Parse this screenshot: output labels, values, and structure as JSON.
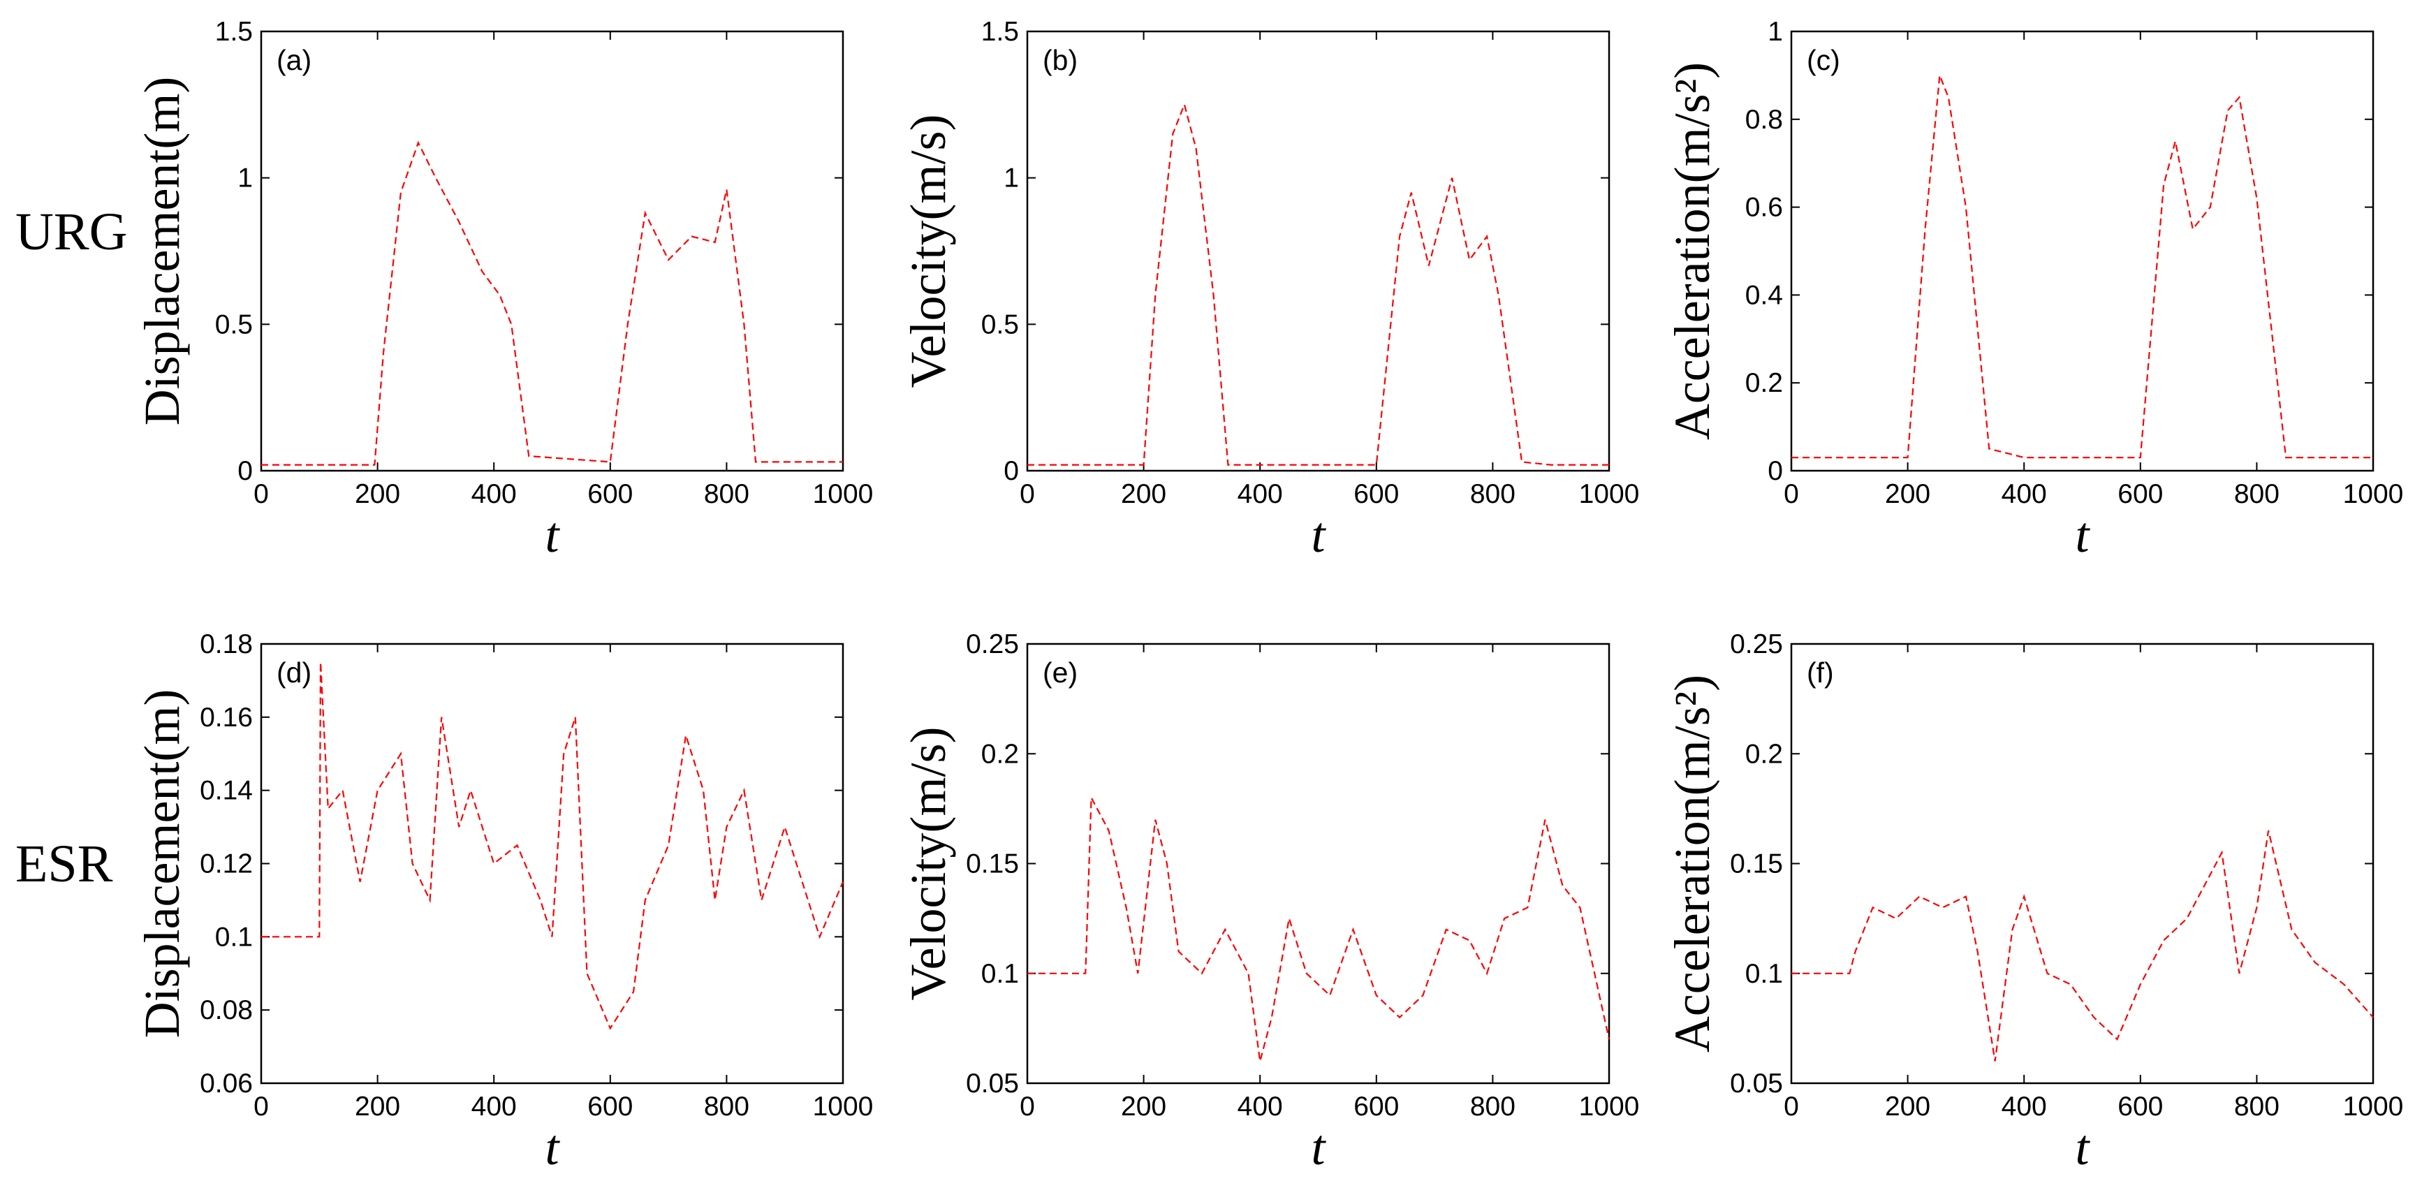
{
  "figure": {
    "row_labels": [
      "URG",
      "ESR"
    ]
  },
  "chart_data": [
    {
      "type": "line",
      "panel": "(a)",
      "row": "URG",
      "ylabel": "Displacement(m)",
      "xlabel": "t",
      "xlim": [
        0,
        1000
      ],
      "ylim": [
        0,
        1.5
      ],
      "xticks": [
        "0",
        "200",
        "400",
        "600",
        "800",
        "1000"
      ],
      "yticks": [
        "0",
        "0.5",
        "1",
        "1.5"
      ],
      "x": [
        0,
        50,
        100,
        150,
        195,
        210,
        240,
        270,
        300,
        340,
        380,
        410,
        430,
        460,
        600,
        630,
        660,
        700,
        740,
        780,
        800,
        830,
        850,
        1000
      ],
      "series": [
        {
          "name": "Displacement",
          "color": "#ff0000",
          "values": [
            0.02,
            0.02,
            0.02,
            0.02,
            0.02,
            0.4,
            0.95,
            1.12,
            1.0,
            0.85,
            0.68,
            0.6,
            0.5,
            0.05,
            0.03,
            0.5,
            0.88,
            0.72,
            0.8,
            0.78,
            0.96,
            0.5,
            0.03,
            0.03
          ]
        }
      ]
    },
    {
      "type": "line",
      "panel": "(b)",
      "row": "URG",
      "ylabel": "Velocity(m/s)",
      "xlabel": "t",
      "xlim": [
        0,
        1000
      ],
      "ylim": [
        0,
        1.5
      ],
      "xticks": [
        "0",
        "200",
        "400",
        "600",
        "800",
        "1000"
      ],
      "yticks": [
        "0",
        "0.5",
        "1",
        "1.5"
      ],
      "x": [
        0,
        100,
        200,
        220,
        250,
        270,
        290,
        320,
        345,
        400,
        500,
        600,
        640,
        660,
        690,
        730,
        760,
        790,
        810,
        850,
        900,
        1000
      ],
      "series": [
        {
          "name": "Velocity",
          "color": "#ff0000",
          "values": [
            0.02,
            0.02,
            0.02,
            0.6,
            1.15,
            1.25,
            1.1,
            0.6,
            0.02,
            0.02,
            0.02,
            0.02,
            0.8,
            0.95,
            0.7,
            1.0,
            0.72,
            0.8,
            0.6,
            0.03,
            0.02,
            0.02
          ]
        }
      ]
    },
    {
      "type": "line",
      "panel": "(c)",
      "row": "URG",
      "ylabel": "Acceleration(m/s²)",
      "xlabel": "t",
      "xlim": [
        0,
        1000
      ],
      "ylim": [
        0,
        1
      ],
      "xticks": [
        "0",
        "200",
        "400",
        "600",
        "800",
        "1000"
      ],
      "yticks": [
        "0",
        "0.2",
        "0.4",
        "0.6",
        "0.8",
        "1"
      ],
      "x": [
        0,
        100,
        200,
        230,
        255,
        270,
        300,
        340,
        400,
        500,
        600,
        640,
        660,
        690,
        720,
        750,
        770,
        800,
        850,
        1000
      ],
      "series": [
        {
          "name": "Acceleration",
          "color": "#ff0000",
          "values": [
            0.03,
            0.03,
            0.03,
            0.55,
            0.9,
            0.85,
            0.6,
            0.05,
            0.03,
            0.03,
            0.03,
            0.65,
            0.75,
            0.55,
            0.6,
            0.82,
            0.85,
            0.62,
            0.03,
            0.03
          ]
        }
      ]
    },
    {
      "type": "line",
      "panel": "(d)",
      "row": "ESR",
      "ylabel": "Displacement(m)",
      "xlabel": "t",
      "xlim": [
        0,
        1000
      ],
      "ylim": [
        0.06,
        0.18
      ],
      "xticks": [
        "0",
        "200",
        "400",
        "600",
        "800",
        "1000"
      ],
      "yticks": [
        "0.06",
        "0.08",
        "0.1",
        "0.12",
        "0.14",
        "0.16",
        "0.18"
      ],
      "x": [
        0,
        100,
        102,
        115,
        140,
        170,
        200,
        240,
        260,
        290,
        310,
        340,
        360,
        400,
        440,
        480,
        500,
        520,
        540,
        560,
        600,
        640,
        660,
        700,
        730,
        760,
        780,
        800,
        830,
        860,
        900,
        940,
        960,
        1000
      ],
      "series": [
        {
          "name": "Displacement",
          "color": "#ff0000",
          "values": [
            0.1,
            0.1,
            0.175,
            0.135,
            0.14,
            0.115,
            0.14,
            0.15,
            0.12,
            0.11,
            0.16,
            0.13,
            0.14,
            0.12,
            0.125,
            0.11,
            0.1,
            0.15,
            0.16,
            0.09,
            0.075,
            0.085,
            0.11,
            0.125,
            0.155,
            0.14,
            0.11,
            0.13,
            0.14,
            0.11,
            0.13,
            0.11,
            0.1,
            0.115
          ]
        }
      ]
    },
    {
      "type": "line",
      "panel": "(e)",
      "row": "ESR",
      "ylabel": "Velocity(m/s)",
      "xlabel": "t",
      "xlim": [
        0,
        1000
      ],
      "ylim": [
        0.05,
        0.25
      ],
      "xticks": [
        "0",
        "200",
        "400",
        "600",
        "800",
        "1000"
      ],
      "yticks": [
        "0.05",
        "0.1",
        "0.15",
        "0.2",
        "0.25"
      ],
      "x": [
        0,
        95,
        100,
        110,
        140,
        170,
        190,
        220,
        240,
        260,
        300,
        340,
        380,
        400,
        420,
        450,
        480,
        520,
        560,
        600,
        640,
        680,
        720,
        760,
        790,
        820,
        860,
        890,
        920,
        950,
        975,
        1000
      ],
      "series": [
        {
          "name": "Velocity",
          "color": "#ff0000",
          "values": [
            0.1,
            0.1,
            0.1,
            0.18,
            0.165,
            0.13,
            0.1,
            0.17,
            0.15,
            0.11,
            0.1,
            0.12,
            0.1,
            0.06,
            0.08,
            0.125,
            0.1,
            0.09,
            0.12,
            0.09,
            0.08,
            0.09,
            0.12,
            0.115,
            0.1,
            0.125,
            0.13,
            0.17,
            0.14,
            0.13,
            0.1,
            0.07
          ]
        }
      ]
    },
    {
      "type": "line",
      "panel": "(f)",
      "row": "ESR",
      "ylabel": "Acceleration(m/s²)",
      "xlabel": "t",
      "xlim": [
        0,
        1000
      ],
      "ylim": [
        0.05,
        0.25
      ],
      "xticks": [
        "0",
        "200",
        "400",
        "600",
        "800",
        "1000"
      ],
      "yticks": [
        "0.05",
        "0.1",
        "0.15",
        "0.2",
        "0.25"
      ],
      "x": [
        0,
        100,
        110,
        140,
        180,
        220,
        260,
        300,
        320,
        350,
        380,
        400,
        440,
        480,
        520,
        560,
        600,
        640,
        680,
        720,
        740,
        770,
        800,
        820,
        860,
        900,
        950,
        1000
      ],
      "series": [
        {
          "name": "Acceleration",
          "color": "#ff0000",
          "values": [
            0.1,
            0.1,
            0.11,
            0.13,
            0.125,
            0.135,
            0.13,
            0.135,
            0.11,
            0.06,
            0.12,
            0.135,
            0.1,
            0.095,
            0.08,
            0.07,
            0.095,
            0.115,
            0.125,
            0.145,
            0.155,
            0.1,
            0.13,
            0.165,
            0.12,
            0.105,
            0.095,
            0.08
          ]
        }
      ]
    }
  ]
}
